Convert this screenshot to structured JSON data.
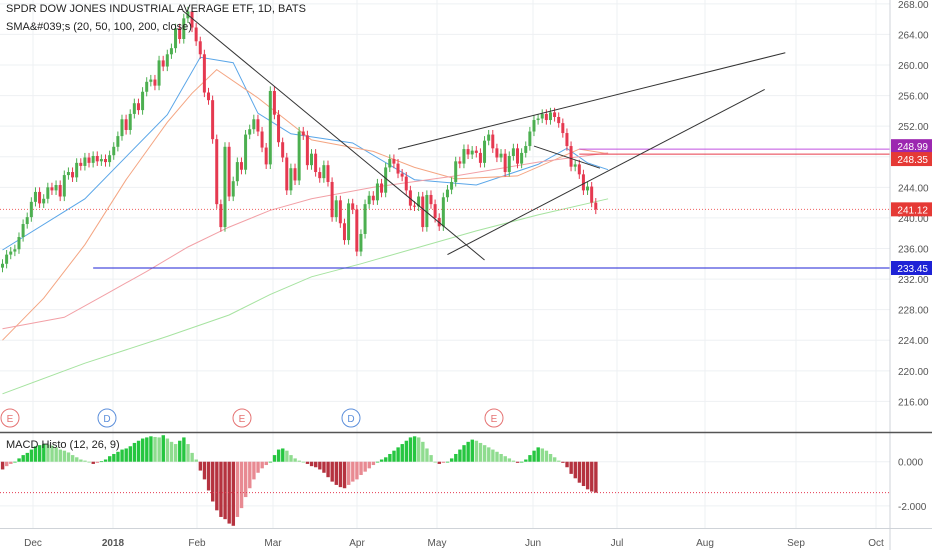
{
  "chart_data": {
    "type": "candlestick",
    "title": "SPDR DOW JONES INDUSTRIAL AVERAGE ETF, 1D, BATS",
    "indicator_label": "SMA&#039;s (20, 50, 100, 200, close)",
    "macd_label": "MACD Histo (12, 26, 9)",
    "price_axis": {
      "ticks": [
        "268.00",
        "264.00",
        "260.00",
        "256.00",
        "252.00",
        "248.00",
        "244.00",
        "240.00",
        "236.00",
        "232.00",
        "228.00",
        "224.00",
        "220.00",
        "216.00"
      ],
      "range": [
        212,
        268.5
      ]
    },
    "macd_axis": {
      "ticks": [
        "0.000",
        "-2.000"
      ],
      "range": [
        -3.0,
        1.3
      ]
    },
    "time_axis": {
      "ticks": [
        "Dec",
        "2018",
        "Feb",
        "Mar",
        "Apr",
        "May",
        "Jun",
        "Jul",
        "Aug",
        "Sep",
        "Oct"
      ]
    },
    "price_labels": [
      {
        "value": 248.99,
        "text": "248.99",
        "color": "#9c27b0"
      },
      {
        "value": 248.35,
        "text": "248.35",
        "color": "#e53935"
      },
      {
        "value": 241.12,
        "text": "241.12",
        "color": "#e53935"
      },
      {
        "value": 233.45,
        "text": "233.45",
        "color": "#1e22d6"
      }
    ],
    "events": [
      {
        "label": "E",
        "color": "#e57373"
      },
      {
        "label": "D",
        "color": "#5c8fdb"
      },
      {
        "label": "E",
        "color": "#e57373"
      },
      {
        "label": "D",
        "color": "#5c8fdb"
      },
      {
        "label": "E",
        "color": "#e57373"
      }
    ],
    "closes": [
      234.0,
      235.2,
      235.6,
      235.9,
      237.5,
      239.2,
      240.1,
      242.1,
      243.4,
      241.9,
      242.5,
      244.0,
      243.6,
      244.3,
      242.8,
      245.6,
      246.0,
      245.3,
      247.2,
      246.8,
      247.9,
      247.2,
      248.1,
      247.4,
      247.7,
      247.3,
      248.2,
      249.3,
      250.7,
      252.9,
      251.5,
      253.6,
      255.0,
      254.1,
      256.5,
      257.8,
      258.1,
      257.3,
      260.6,
      259.8,
      261.4,
      262.2,
      264.8,
      263.4,
      266.1,
      267.0,
      264.9,
      263.1,
      261.4,
      256.4,
      255.4,
      250.3,
      241.8,
      238.8,
      249.3,
      242.8,
      244.8,
      247.3,
      246.3,
      250.9,
      251.6,
      252.9,
      251.3,
      249.2,
      247.0,
      256.6,
      253.5,
      249.9,
      247.9,
      243.6,
      246.5,
      244.9,
      251.3,
      250.8,
      246.9,
      248.4,
      246.0,
      245.2,
      246.9,
      244.7,
      240.1,
      242.3,
      239.3,
      237.1,
      241.9,
      241.1,
      235.6,
      237.9,
      241.8,
      242.9,
      242.3,
      244.5,
      243.3,
      246.6,
      247.7,
      247.1,
      245.8,
      245.4,
      243.6,
      241.6,
      241.5,
      242.8,
      238.8,
      243.0,
      241.8,
      240.0,
      238.9,
      242.7,
      243.7,
      244.7,
      247.4,
      247.1,
      249.0,
      248.3,
      248.8,
      248.5,
      247.2,
      250.1,
      250.9,
      249.1,
      247.9,
      248.4,
      246.0,
      248.1,
      249.1,
      247.1,
      248.5,
      249.4,
      251.3,
      252.8,
      253.0,
      253.6,
      252.8,
      253.8,
      253.2,
      252.4,
      251.1,
      249.4,
      246.7,
      247.0,
      245.7,
      243.6,
      244.1,
      242.0,
      241.1
    ],
    "sma": [
      {
        "name": "SMA 20",
        "color": "#5aa6e8",
        "points": [
          [
            0,
            235.8
          ],
          [
            20,
            242.5
          ],
          [
            40,
            253.5
          ],
          [
            48,
            261.0
          ],
          [
            56,
            260.3
          ],
          [
            62,
            253.7
          ],
          [
            70,
            251.0
          ],
          [
            85,
            249.8
          ],
          [
            100,
            245.0
          ],
          [
            115,
            244.3
          ],
          [
            130,
            247.0
          ],
          [
            137,
            249.1
          ],
          [
            142,
            247.2
          ],
          [
            147,
            246.3
          ]
        ]
      },
      {
        "name": "SMA 50",
        "color": "#f4a582",
        "points": [
          [
            0,
            224.0
          ],
          [
            10,
            229.5
          ],
          [
            20,
            236.5
          ],
          [
            30,
            245.0
          ],
          [
            40,
            252.5
          ],
          [
            46,
            256.3
          ],
          [
            52,
            259.4
          ],
          [
            62,
            255.7
          ],
          [
            75,
            250.2
          ],
          [
            90,
            248.7
          ],
          [
            100,
            246.6
          ],
          [
            110,
            245.1
          ],
          [
            125,
            245.5
          ],
          [
            140,
            249.0
          ],
          [
            147,
            248.4
          ]
        ]
      },
      {
        "name": "SMA 100",
        "color": "#f2a0a6",
        "points": [
          [
            0,
            225.5
          ],
          [
            15,
            227.0
          ],
          [
            25,
            230.0
          ],
          [
            35,
            233.0
          ],
          [
            45,
            236.2
          ],
          [
            55,
            238.8
          ],
          [
            65,
            241.0
          ],
          [
            75,
            242.5
          ],
          [
            90,
            244.0
          ],
          [
            110,
            245.5
          ],
          [
            130,
            247.3
          ],
          [
            147,
            248.5
          ]
        ]
      },
      {
        "name": "SMA 200",
        "color": "#a6e3a0",
        "points": [
          [
            0,
            217.0
          ],
          [
            20,
            221.0
          ],
          [
            40,
            224.5
          ],
          [
            55,
            227.3
          ],
          [
            65,
            230.0
          ],
          [
            75,
            232.3
          ],
          [
            87,
            234.0
          ],
          [
            100,
            236.0
          ],
          [
            115,
            238.3
          ],
          [
            130,
            240.4
          ],
          [
            147,
            242.5
          ]
        ]
      }
    ],
    "trendlines": [
      {
        "name": "downtrend-line",
        "color": "#333333",
        "points": [
          [
            44,
            267.0
          ],
          [
            117,
            234.5
          ]
        ]
      },
      {
        "name": "wedge-upper-line",
        "color": "#333333",
        "points": [
          [
            96,
            249.0
          ],
          [
            190,
            261.6
          ]
        ]
      },
      {
        "name": "wedge-lower-line",
        "color": "#333333",
        "points": [
          [
            108,
            235.2
          ],
          [
            185,
            256.8
          ]
        ]
      },
      {
        "name": "short-black-line",
        "color": "#333333",
        "points": [
          [
            129,
            249.4
          ],
          [
            145,
            246.5
          ]
        ]
      }
    ],
    "hlines": [
      {
        "name": "support-233",
        "value": 233.45,
        "color": "#1e22d6",
        "from": 22
      },
      {
        "name": "level-241",
        "value": 241.12,
        "color": "#f06060",
        "dotted": true
      },
      {
        "name": "level-248-99",
        "value": 248.99,
        "color": "#c050e0",
        "from": 140
      },
      {
        "name": "level-248-35",
        "value": 248.35,
        "color": "#e83a4a",
        "from": 140
      }
    ],
    "macd_histogram": [
      -0.35,
      -0.2,
      -0.1,
      0.0,
      0.15,
      0.3,
      0.4,
      0.55,
      0.7,
      0.75,
      0.8,
      0.78,
      0.73,
      0.65,
      0.55,
      0.5,
      0.42,
      0.3,
      0.2,
      0.1,
      0.05,
      0.0,
      -0.1,
      -0.05,
      0.02,
      0.1,
      0.25,
      0.35,
      0.45,
      0.55,
      0.6,
      0.7,
      0.85,
      0.95,
      1.05,
      1.1,
      1.15,
      1.12,
      1.1,
      1.2,
      1.05,
      0.9,
      0.8,
      0.95,
      1.1,
      0.8,
      0.4,
      0.1,
      -0.4,
      -0.8,
      -1.3,
      -1.8,
      -2.2,
      -2.5,
      -2.6,
      -2.8,
      -2.9,
      -2.5,
      -2.1,
      -1.6,
      -1.2,
      -0.8,
      -0.5,
      -0.3,
      -0.15,
      0.0,
      0.3,
      0.55,
      0.6,
      0.5,
      0.3,
      0.15,
      0.05,
      0.0,
      -0.1,
      -0.2,
      -0.25,
      -0.35,
      -0.5,
      -0.7,
      -0.9,
      -1.05,
      -1.15,
      -1.2,
      -1.05,
      -0.9,
      -0.8,
      -0.6,
      -0.45,
      -0.3,
      -0.15,
      0.0,
      0.1,
      0.2,
      0.35,
      0.5,
      0.65,
      0.8,
      0.95,
      1.1,
      1.15,
      1.1,
      0.9,
      0.6,
      0.3,
      0.0,
      -0.1,
      -0.05,
      0.0,
      0.15,
      0.35,
      0.55,
      0.75,
      0.9,
      1.0,
      0.95,
      0.85,
      0.75,
      0.65,
      0.55,
      0.45,
      0.35,
      0.25,
      0.15,
      0.05,
      -0.05,
      0.0,
      0.1,
      0.3,
      0.5,
      0.65,
      0.6,
      0.5,
      0.35,
      0.2,
      0.05,
      -0.05,
      -0.25,
      -0.55,
      -0.75,
      -0.95,
      -1.1,
      -1.25,
      -1.35,
      -1.4
    ]
  }
}
